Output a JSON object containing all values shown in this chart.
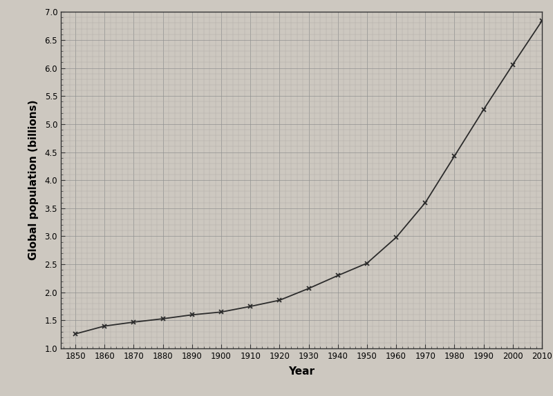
{
  "years": [
    1850,
    1860,
    1870,
    1880,
    1890,
    1900,
    1910,
    1920,
    1930,
    1940,
    1950,
    1960,
    1970,
    1980,
    1990,
    2000,
    2010
  ],
  "population": [
    1.26,
    1.4,
    1.47,
    1.53,
    1.6,
    1.65,
    1.75,
    1.86,
    2.07,
    2.3,
    2.52,
    2.98,
    3.6,
    4.43,
    5.26,
    6.06,
    6.84
  ],
  "ylabel": "Global population (billions)",
  "xlabel": "Year",
  "ylim": [
    1.0,
    7.0
  ],
  "xlim": [
    1845,
    2010
  ],
  "yticks": [
    1.0,
    1.5,
    2.0,
    2.5,
    3.0,
    3.5,
    4.0,
    4.5,
    5.0,
    5.5,
    6.0,
    6.5,
    7.0
  ],
  "xticks": [
    1850,
    1860,
    1870,
    1880,
    1890,
    1900,
    1910,
    1920,
    1930,
    1940,
    1950,
    1960,
    1970,
    1980,
    1990,
    2000,
    2010
  ],
  "line_color": "#2b2b2b",
  "marker": "x",
  "marker_size": 5,
  "marker_color": "#2b2b2b",
  "background_color": "#cdc8c0",
  "grid_color": "#909090",
  "grid_minor_color": "#b0aba5",
  "spine_color": "#333333",
  "tick_label_fontsize": 8.5,
  "axis_label_fontsize": 11
}
